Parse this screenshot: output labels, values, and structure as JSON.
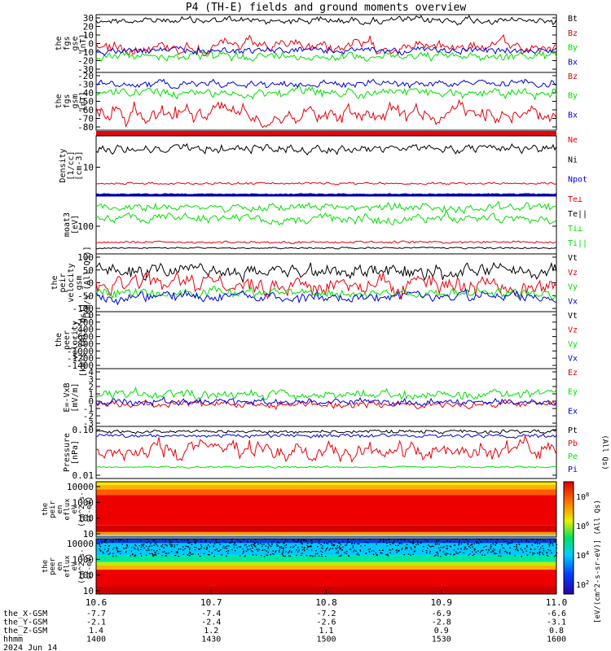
{
  "title": "P4 (TH-E) fields and ground moments overview",
  "colors": {
    "black": "#000000",
    "red": "#e8000b",
    "green": "#00e000",
    "blue": "#0000dd"
  },
  "panels": [
    {
      "id": "fgs",
      "ylabel": [
        "the",
        "fgs",
        "gse",
        "[nT]"
      ],
      "ticks": [
        "30",
        "20",
        "10",
        "0",
        "-10",
        "-20",
        "-30"
      ],
      "legend": [
        {
          "text": "Bt",
          "color": "black"
        },
        {
          "text": "Bz",
          "color": "red"
        },
        {
          "text": "By",
          "color": "green"
        },
        {
          "text": "Bx",
          "color": "blue"
        }
      ]
    },
    {
      "id": "fgs_gsm",
      "ylabel": [
        "the",
        "fgs",
        "gsm",
        "[nT]"
      ],
      "ticks": [
        "-20",
        "-30",
        "-40",
        "-50",
        "-60",
        "-70",
        "-80"
      ],
      "legend": [
        {
          "text": "Bz",
          "color": "red"
        },
        {
          "text": "By",
          "color": "green"
        },
        {
          "text": "Bx",
          "color": "blue"
        }
      ]
    },
    {
      "id": "density",
      "ylabel": [
        "Density",
        "[1/cc]",
        "[cm-3]"
      ],
      "ticks": [
        "10"
      ],
      "legend": [
        {
          "text": "Ne",
          "color": "red"
        },
        {
          "text": "Ni",
          "color": "black"
        },
        {
          "text": "Npot",
          "color": "blue"
        }
      ]
    },
    {
      "id": "temp",
      "ylabel": [
        "moat3",
        "[eV]"
      ],
      "ticks": [
        "100"
      ],
      "legend": [
        {
          "text": "Te⊥",
          "color": "red"
        },
        {
          "text": "Te||",
          "color": "black"
        },
        {
          "text": "Ti⊥",
          "color": "green"
        },
        {
          "text": "Ti||",
          "color": "green"
        }
      ]
    },
    {
      "id": "vel_gsm",
      "ylabel": [
        "the",
        "peir",
        "velocity",
        "gsm",
        "[km/s (All Qs)]"
      ],
      "ticks": [
        "100",
        "50",
        "0",
        "-50",
        "-100"
      ],
      "legend": [
        {
          "text": "Vt",
          "color": "black"
        },
        {
          "text": "Vz",
          "color": "red"
        },
        {
          "text": "Vy",
          "color": "green"
        },
        {
          "text": "Vx",
          "color": "blue"
        }
      ]
    },
    {
      "id": "vel_peer",
      "ylabel": [
        "the",
        "peer",
        "velocity",
        "[km/s (All Qs)]"
      ],
      "ticks": [
        "0",
        "-200",
        "-400",
        "-600",
        "-800",
        "-1000",
        "-1200",
        "-1400"
      ],
      "legend": [
        {
          "text": "Vt",
          "color": "black"
        },
        {
          "text": "Vz",
          "color": "red"
        },
        {
          "text": "Vy",
          "color": "green"
        },
        {
          "text": "Vx",
          "color": "blue"
        }
      ]
    },
    {
      "id": "efield",
      "ylabel": [
        "E=-VxB",
        "[mV/m]"
      ],
      "ticks": [
        "4",
        "3",
        "2",
        "1",
        "0",
        "-1",
        "-2",
        "-3"
      ],
      "legend": [
        {
          "text": "Ez",
          "color": "red"
        },
        {
          "text": "Ey",
          "color": "green"
        },
        {
          "text": "Ex",
          "color": "blue"
        }
      ]
    },
    {
      "id": "pressure",
      "ylabel": [
        "Pressure",
        "[nPa]"
      ],
      "ticks": [
        "0.10",
        "0.01"
      ],
      "legend": [
        {
          "text": "Pt",
          "color": "black"
        },
        {
          "text": "Pb",
          "color": "red"
        },
        {
          "text": "Pe",
          "color": "green"
        },
        {
          "text": "Pi",
          "color": "blue"
        }
      ],
      "side_note": "(All Qs)"
    },
    {
      "id": "ion_spec",
      "ylabel": [
        "the",
        "peir",
        "en",
        "eflux",
        "eV",
        "(cm^2-s-",
        "sr-eV)"
      ],
      "ticks": [
        "10000",
        "1000",
        "100",
        "10"
      ]
    },
    {
      "id": "elec_spec",
      "ylabel": [
        "the",
        "peer",
        "en",
        "eflux",
        "eV",
        "(cm^2-s-",
        "sr-eV)"
      ],
      "ticks": [
        "10000",
        "1000",
        "100",
        "10"
      ]
    }
  ],
  "colorbar": {
    "ticks": [
      "10^8",
      "10^6",
      "10^4",
      "10^2"
    ],
    "label": "[eV/(cm^2-s-sr-eV)] (All Qs)"
  },
  "x_axis": {
    "ticks": [
      "10.6",
      "10.7",
      "10.8",
      "10.9",
      "11.0"
    ],
    "rows": [
      {
        "name": "the_X-GSM",
        "values": [
          "-7.7",
          "-7.4",
          "-7.2",
          "-6.9",
          "-6.6"
        ]
      },
      {
        "name": "the_Y-GSM",
        "values": [
          "-2.1",
          "-2.4",
          "-2.6",
          "-2.8",
          "-3.1"
        ]
      },
      {
        "name": "the_Z-GSM",
        "values": [
          "1.4",
          "1.2",
          "1.1",
          "0.9",
          "0.8"
        ]
      },
      {
        "name": "hhmm",
        "values": [
          "1400",
          "1430",
          "1500",
          "1530",
          "1600"
        ]
      }
    ],
    "date": "2024 Jun 14"
  },
  "chart_data": {
    "type": "line",
    "title": "P4 (TH-E) fields and ground moments overview",
    "x_label": "hhmm",
    "x_range": [
      "1400",
      "1600"
    ],
    "panels": [
      {
        "id": "fgs",
        "ylim": [
          -30,
          30
        ],
        "series": [
          {
            "name": "Bt",
            "mean": 26
          },
          {
            "name": "Bz",
            "mean": 0
          },
          {
            "name": "By",
            "mean": -10
          },
          {
            "name": "Bx",
            "mean": 0
          }
        ]
      },
      {
        "id": "fgs_gsm",
        "ylim": [
          -80,
          -20
        ],
        "series": [
          {
            "name": "Bz",
            "mean": -55
          },
          {
            "name": "By",
            "mean": -33
          },
          {
            "name": "Bx",
            "mean": -23
          }
        ]
      },
      {
        "id": "density",
        "scale": "log",
        "series": [
          {
            "name": "Ni",
            "mean": 15
          },
          {
            "name": "Ne",
            "mean": 3
          },
          {
            "name": "Npot",
            "mean": 1.5
          }
        ]
      },
      {
        "id": "temp",
        "scale": "log",
        "series": [
          {
            "name": "Te⊥",
            "mean": 30
          },
          {
            "name": "Te||",
            "mean": 25
          },
          {
            "name": "Ti⊥",
            "mean": 200
          },
          {
            "name": "Ti||",
            "mean": 400
          }
        ]
      },
      {
        "id": "vel_gsm",
        "ylim": [
          -100,
          130
        ],
        "series": [
          {
            "name": "Vt",
            "mean": 70
          },
          {
            "name": "Vz",
            "mean": 5
          },
          {
            "name": "Vy",
            "mean": -20
          },
          {
            "name": "Vx",
            "mean": -40
          }
        ]
      },
      {
        "id": "vel_peer",
        "ylim": [
          -1400,
          0
        ],
        "series": []
      },
      {
        "id": "efield",
        "ylim": [
          -3,
          4
        ],
        "series": [
          {
            "name": "Ez",
            "mean": 0
          },
          {
            "name": "Ey",
            "mean": 0.6
          },
          {
            "name": "Ex",
            "mean": 0.2
          }
        ]
      },
      {
        "id": "pressure",
        "scale": "log",
        "series": [
          {
            "name": "Pt",
            "mean": 0.4
          },
          {
            "name": "Pb",
            "mean": 0.12
          },
          {
            "name": "Pe",
            "mean": 0.025
          },
          {
            "name": "Pi",
            "mean": 0.33
          }
        ]
      }
    ]
  }
}
